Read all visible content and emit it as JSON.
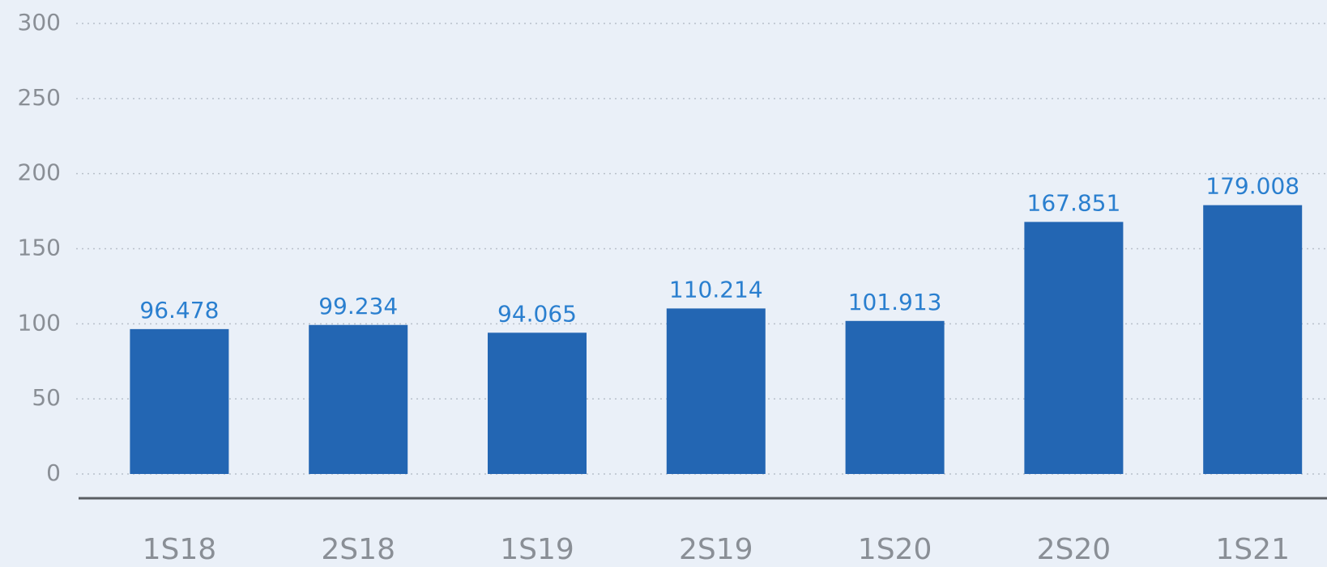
{
  "chart_data": {
    "type": "bar",
    "categories": [
      "1S18",
      "2S18",
      "1S19",
      "2S19",
      "1S20",
      "2S20",
      "1S21"
    ],
    "values": [
      96.478,
      99.234,
      94.065,
      110.214,
      101.913,
      167.851,
      179.008
    ],
    "color": "#2366b3",
    "ylim": [
      0,
      300
    ],
    "yticks": [
      0,
      50,
      100,
      150,
      200,
      250,
      300
    ],
    "grid": true
  }
}
